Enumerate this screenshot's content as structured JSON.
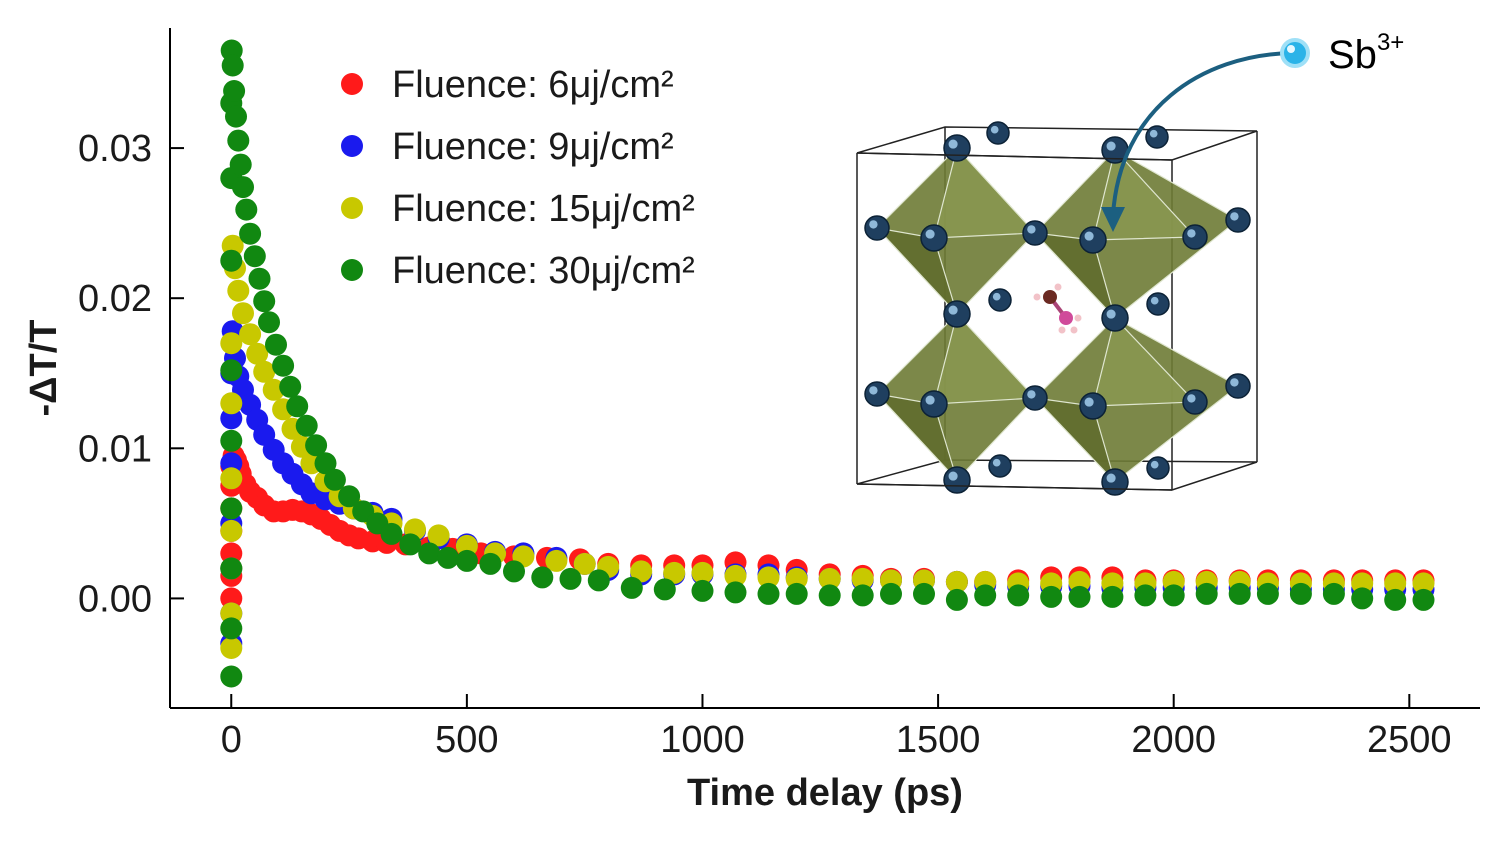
{
  "chart_data": {
    "type": "scatter",
    "xlabel": "Time delay (ps)",
    "ylabel": "-ΔT/T",
    "xlim": [
      -130,
      2650
    ],
    "ylim": [
      -0.0073,
      0.038
    ],
    "xticks": [
      0,
      500,
      1000,
      1500,
      2000,
      2500
    ],
    "xtick_labels": [
      "0",
      "500",
      "1000",
      "1500",
      "2000",
      "2500"
    ],
    "yticks": [
      0.0,
      0.01,
      0.02,
      0.03
    ],
    "ytick_labels": [
      "0.00",
      "0.01",
      "0.02",
      "0.03"
    ],
    "grid": false,
    "legend_position": "top-left",
    "series": [
      {
        "name": "Fluence: 6μj/cm²",
        "color": "#ff1a1a",
        "points": [
          [
            0,
            0.0
          ],
          [
            0,
            0.0015
          ],
          [
            0,
            0.003
          ],
          [
            0,
            0.0045
          ],
          [
            0,
            0.006
          ],
          [
            0,
            0.0075
          ],
          [
            0,
            0.0088
          ],
          [
            5,
            0.0095
          ],
          [
            10,
            0.0092
          ],
          [
            15,
            0.0088
          ],
          [
            20,
            0.0083
          ],
          [
            30,
            0.0076
          ],
          [
            40,
            0.0071
          ],
          [
            55,
            0.0067
          ],
          [
            70,
            0.0062
          ],
          [
            90,
            0.0058
          ],
          [
            110,
            0.0058
          ],
          [
            130,
            0.0059
          ],
          [
            150,
            0.0058
          ],
          [
            170,
            0.0056
          ],
          [
            190,
            0.0053
          ],
          [
            210,
            0.0049
          ],
          [
            230,
            0.0045
          ],
          [
            250,
            0.0042
          ],
          [
            270,
            0.004
          ],
          [
            300,
            0.0038
          ],
          [
            330,
            0.0037
          ],
          [
            370,
            0.0036
          ],
          [
            420,
            0.0034
          ],
          [
            470,
            0.0033
          ],
          [
            530,
            0.003
          ],
          [
            600,
            0.0028
          ],
          [
            670,
            0.0027
          ],
          [
            740,
            0.0026
          ],
          [
            800,
            0.0023
          ],
          [
            870,
            0.0022
          ],
          [
            940,
            0.0022
          ],
          [
            1000,
            0.0022
          ],
          [
            1070,
            0.0024
          ],
          [
            1140,
            0.0022
          ],
          [
            1200,
            0.0019
          ],
          [
            1270,
            0.0016
          ],
          [
            1340,
            0.0015
          ],
          [
            1400,
            0.0013
          ],
          [
            1470,
            0.0013
          ],
          [
            1540,
            0.0011
          ],
          [
            1600,
            0.0011
          ],
          [
            1670,
            0.0012
          ],
          [
            1740,
            0.0014
          ],
          [
            1800,
            0.0014
          ],
          [
            1870,
            0.0014
          ],
          [
            1940,
            0.0012
          ],
          [
            2000,
            0.0012
          ],
          [
            2070,
            0.0012
          ],
          [
            2140,
            0.0012
          ],
          [
            2200,
            0.0012
          ],
          [
            2270,
            0.0012
          ],
          [
            2340,
            0.0012
          ],
          [
            2400,
            0.0012
          ],
          [
            2470,
            0.0012
          ],
          [
            2530,
            0.0012
          ]
        ]
      },
      {
        "name": "Fluence: 9μj/cm²",
        "color": "#1a1aee",
        "points": [
          [
            0,
            -0.003
          ],
          [
            0,
            -0.001
          ],
          [
            0,
            0.002
          ],
          [
            0,
            0.005
          ],
          [
            0,
            0.009
          ],
          [
            0,
            0.012
          ],
          [
            0,
            0.015
          ],
          [
            3,
            0.0178
          ],
          [
            8,
            0.016
          ],
          [
            15,
            0.0148
          ],
          [
            25,
            0.0139
          ],
          [
            40,
            0.0129
          ],
          [
            55,
            0.0119
          ],
          [
            70,
            0.0109
          ],
          [
            90,
            0.0099
          ],
          [
            110,
            0.009
          ],
          [
            130,
            0.0083
          ],
          [
            150,
            0.0076
          ],
          [
            170,
            0.007
          ],
          [
            200,
            0.0066
          ],
          [
            230,
            0.0063
          ],
          [
            260,
            0.006
          ],
          [
            300,
            0.0057
          ],
          [
            340,
            0.0053
          ],
          [
            390,
            0.0045
          ],
          [
            440,
            0.004
          ],
          [
            500,
            0.0036
          ],
          [
            560,
            0.0031
          ],
          [
            620,
            0.003
          ],
          [
            690,
            0.0027
          ],
          [
            750,
            0.0023
          ],
          [
            800,
            0.0019
          ],
          [
            870,
            0.0016
          ],
          [
            940,
            0.0016
          ],
          [
            1000,
            0.0016
          ],
          [
            1070,
            0.0016
          ],
          [
            1140,
            0.0016
          ],
          [
            1200,
            0.0014
          ],
          [
            1270,
            0.0013
          ],
          [
            1340,
            0.0012
          ],
          [
            1400,
            0.0012
          ],
          [
            1470,
            0.0012
          ],
          [
            1540,
            0.0011
          ],
          [
            1600,
            0.0009
          ],
          [
            1670,
            0.0008
          ],
          [
            1740,
            0.0008
          ],
          [
            1800,
            0.0008
          ],
          [
            1870,
            0.0007
          ],
          [
            1940,
            0.0007
          ],
          [
            2000,
            0.0007
          ],
          [
            2070,
            0.0007
          ],
          [
            2140,
            0.0007
          ],
          [
            2200,
            0.0007
          ],
          [
            2270,
            0.0006
          ],
          [
            2340,
            0.0006
          ],
          [
            2400,
            0.0006
          ],
          [
            2470,
            0.0006
          ],
          [
            2530,
            0.0006
          ]
        ]
      },
      {
        "name": "Fluence: 15μj/cm²",
        "color": "#c8c800",
        "points": [
          [
            0,
            -0.0033
          ],
          [
            0,
            -0.001
          ],
          [
            0,
            0.002
          ],
          [
            0,
            0.0045
          ],
          [
            0,
            0.008
          ],
          [
            0,
            0.013
          ],
          [
            0,
            0.017
          ],
          [
            3,
            0.0235
          ],
          [
            8,
            0.022
          ],
          [
            15,
            0.0205
          ],
          [
            25,
            0.019
          ],
          [
            40,
            0.0176
          ],
          [
            55,
            0.0163
          ],
          [
            70,
            0.0151
          ],
          [
            90,
            0.0139
          ],
          [
            110,
            0.0126
          ],
          [
            130,
            0.0113
          ],
          [
            150,
            0.0101
          ],
          [
            170,
            0.009
          ],
          [
            200,
            0.0078
          ],
          [
            230,
            0.0068
          ],
          [
            260,
            0.006
          ],
          [
            300,
            0.0055
          ],
          [
            340,
            0.005
          ],
          [
            390,
            0.0046
          ],
          [
            440,
            0.0042
          ],
          [
            500,
            0.0035
          ],
          [
            560,
            0.003
          ],
          [
            620,
            0.0028
          ],
          [
            690,
            0.0025
          ],
          [
            750,
            0.0023
          ],
          [
            800,
            0.0021
          ],
          [
            870,
            0.0018
          ],
          [
            940,
            0.0017
          ],
          [
            1000,
            0.0017
          ],
          [
            1070,
            0.0015
          ],
          [
            1140,
            0.0014
          ],
          [
            1200,
            0.0013
          ],
          [
            1270,
            0.0013
          ],
          [
            1340,
            0.0013
          ],
          [
            1400,
            0.0012
          ],
          [
            1470,
            0.0012
          ],
          [
            1540,
            0.0011
          ],
          [
            1600,
            0.0011
          ],
          [
            1670,
            0.001
          ],
          [
            1740,
            0.001
          ],
          [
            1800,
            0.0011
          ],
          [
            1870,
            0.001
          ],
          [
            1940,
            0.001
          ],
          [
            2000,
            0.0011
          ],
          [
            2070,
            0.0011
          ],
          [
            2140,
            0.0011
          ],
          [
            2200,
            0.001
          ],
          [
            2270,
            0.001
          ],
          [
            2340,
            0.001
          ],
          [
            2400,
            0.001
          ],
          [
            2470,
            0.001
          ],
          [
            2530,
            0.001
          ]
        ]
      },
      {
        "name": "Fluence: 30μj/cm²",
        "color": "#118811",
        "points": [
          [
            0,
            -0.0052
          ],
          [
            0,
            -0.002
          ],
          [
            0,
            0.002
          ],
          [
            0,
            0.006
          ],
          [
            0,
            0.0105
          ],
          [
            0,
            0.0152
          ],
          [
            0,
            0.0225
          ],
          [
            0,
            0.028
          ],
          [
            0,
            0.033
          ],
          [
            1,
            0.0365
          ],
          [
            3,
            0.0355
          ],
          [
            6,
            0.0338
          ],
          [
            10,
            0.0321
          ],
          [
            15,
            0.0305
          ],
          [
            20,
            0.0289
          ],
          [
            25,
            0.0274
          ],
          [
            32,
            0.0259
          ],
          [
            40,
            0.0243
          ],
          [
            50,
            0.0228
          ],
          [
            60,
            0.0213
          ],
          [
            70,
            0.0198
          ],
          [
            80,
            0.0184
          ],
          [
            95,
            0.0169
          ],
          [
            110,
            0.0155
          ],
          [
            125,
            0.0141
          ],
          [
            140,
            0.0128
          ],
          [
            160,
            0.0115
          ],
          [
            180,
            0.0102
          ],
          [
            200,
            0.009
          ],
          [
            220,
            0.0079
          ],
          [
            250,
            0.0068
          ],
          [
            280,
            0.0058
          ],
          [
            310,
            0.005
          ],
          [
            340,
            0.0043
          ],
          [
            380,
            0.0036
          ],
          [
            420,
            0.003
          ],
          [
            460,
            0.0027
          ],
          [
            500,
            0.0025
          ],
          [
            550,
            0.0023
          ],
          [
            600,
            0.0018
          ],
          [
            660,
            0.0014
          ],
          [
            720,
            0.0013
          ],
          [
            780,
            0.0012
          ],
          [
            850,
            0.0007
          ],
          [
            920,
            0.0006
          ],
          [
            1000,
            0.0005
          ],
          [
            1070,
            0.0004
          ],
          [
            1140,
            0.0003
          ],
          [
            1200,
            0.0003
          ],
          [
            1270,
            0.0002
          ],
          [
            1340,
            0.0002
          ],
          [
            1400,
            0.0003
          ],
          [
            1470,
            0.0003
          ],
          [
            1540,
            -0.0001
          ],
          [
            1600,
            0.0002
          ],
          [
            1670,
            0.0002
          ],
          [
            1740,
            0.0001
          ],
          [
            1800,
            0.0001
          ],
          [
            1870,
            0.0001
          ],
          [
            1940,
            0.0002
          ],
          [
            2000,
            0.0002
          ],
          [
            2070,
            0.0003
          ],
          [
            2140,
            0.0003
          ],
          [
            2200,
            0.0003
          ],
          [
            2270,
            0.0003
          ],
          [
            2340,
            0.0003
          ],
          [
            2400,
            0.0
          ],
          [
            2470,
            -0.0001
          ],
          [
            2530,
            -0.0001
          ]
        ]
      }
    ],
    "inset_annotation": "Sb3+"
  }
}
